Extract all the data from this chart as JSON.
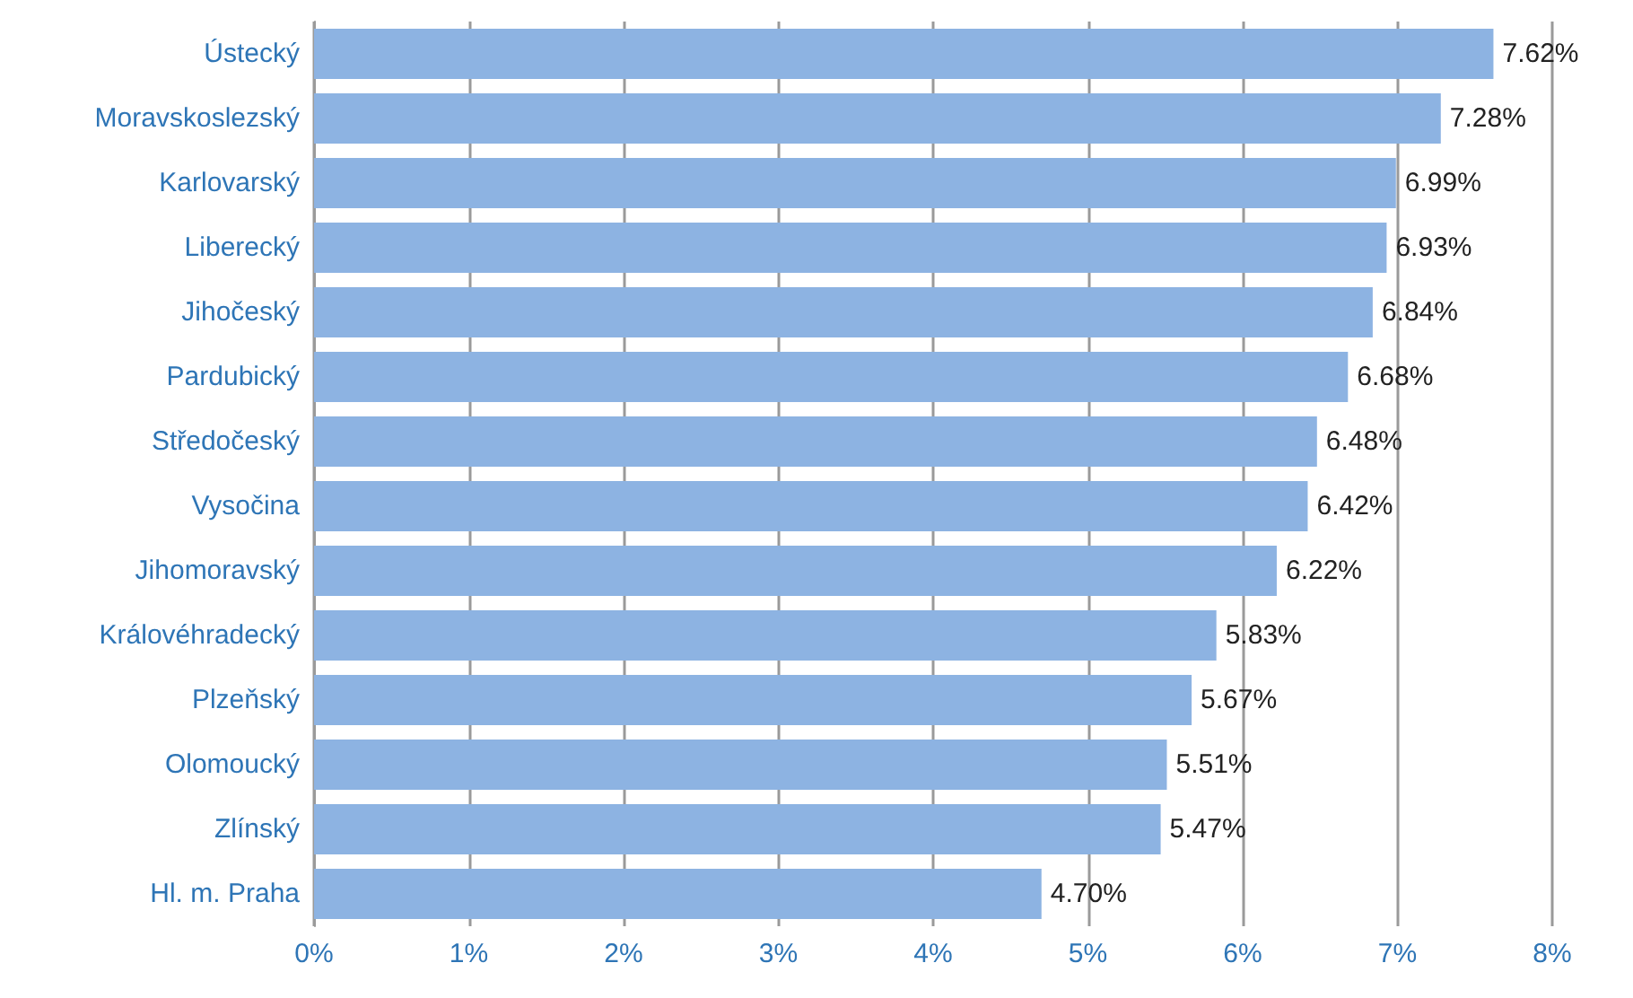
{
  "chart_data": {
    "type": "bar",
    "orientation": "horizontal",
    "categories": [
      "Ústecký",
      "Moravskoslezský",
      "Karlovarský",
      "Liberecký",
      "Jihočeský",
      "Pardubický",
      "Středočeský",
      "Vysočina",
      "Jihomoravský",
      "Královéhradecký",
      "Plzeňský",
      "Olomoucký",
      "Zlínský",
      "Hl. m. Praha"
    ],
    "values": [
      7.62,
      7.28,
      6.99,
      6.93,
      6.84,
      6.68,
      6.48,
      6.42,
      6.22,
      5.83,
      5.67,
      5.51,
      5.47,
      4.7
    ],
    "value_labels": [
      "7.62%",
      "7.28%",
      "6.99%",
      "6.93%",
      "6.84%",
      "6.68%",
      "6.48%",
      "6.42%",
      "6.22%",
      "5.83%",
      "5.67%",
      "5.51%",
      "5.47%",
      "4.70%"
    ],
    "color": "#8db3e2",
    "xlim": [
      0,
      8
    ],
    "xticks": [
      {
        "value": 0,
        "label": "0%"
      },
      {
        "value": 1,
        "label": "1%"
      },
      {
        "value": 2,
        "label": "2%"
      },
      {
        "value": 3,
        "label": "3%"
      },
      {
        "value": 4,
        "label": "4%"
      },
      {
        "value": 5,
        "label": "5%"
      },
      {
        "value": 6,
        "label": "6%"
      },
      {
        "value": 7,
        "label": "7%"
      },
      {
        "value": 8,
        "label": "8%"
      }
    ],
    "grid": "x"
  }
}
